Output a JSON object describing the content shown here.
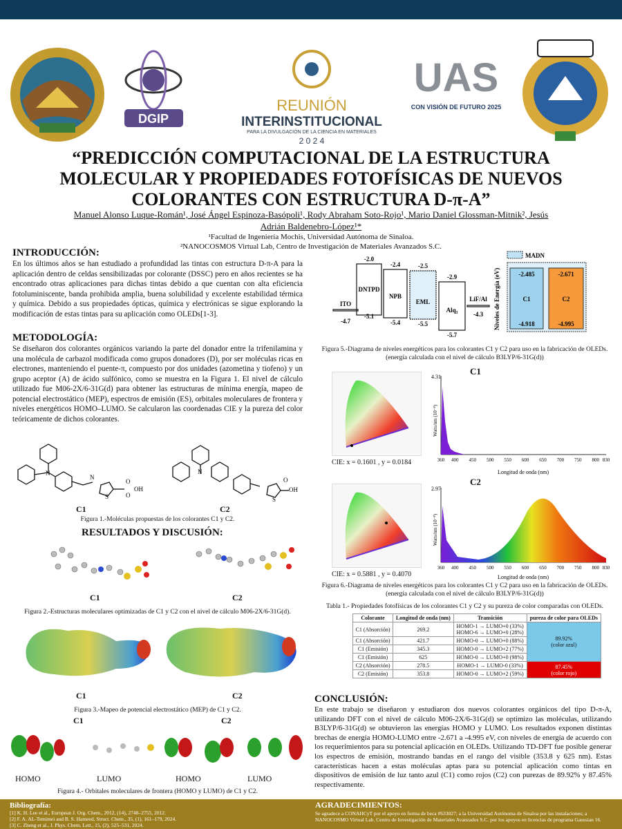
{
  "header": {
    "logos": [
      "uas-seal-logo",
      "dgip-logo",
      "reunion-logo",
      "uas-2025-logo",
      "facultad-mochis-logo"
    ],
    "logo_texts": {
      "dgip": "DGIP",
      "reunion_1": "REUNIÓN",
      "reunion_2": "INTERINSTITUCIONAL",
      "reunion_3": "PARA LA DIVULGACIÓN DE LA CIENCIA EN MATERIALES",
      "reunion_4": "2 0 2 4",
      "uas": "UAS",
      "uas_sub": "CON VISIÓN DE FUTURO 2025"
    }
  },
  "title": {
    "line1": "“PREDICCIÓN COMPUTACIONAL DE LA ESTRUCTURA",
    "line2": "MOLECULAR Y PROPIEDADES FOTOFÍSICAS DE NUEVOS",
    "line3": "COLORANTES CON ESTRUCTURA D-π-A”"
  },
  "authors": {
    "line1": "Manuel Alonso Luque-Román¹, José Ángel Espinoza-Basópoli¹, Rody Abraham Soto-Rojo¹, Mario Daniel Glossman-Mitnik², Jesús",
    "line2": "Adrián Baldenebro-López¹*",
    "affil1": "¹Facultad de Ingeniería Mochis, Universidad Autónoma de Sinaloa.",
    "affil2": "²NANOCOSMOS Virtual Lab, Centro de Investigación de Materiales Avanzados S.C."
  },
  "intro": {
    "title": "INTRODUCCIÓN:",
    "text": "En los últimos años se han estudiado a profundidad las tintas con estructura D-π-A para la aplicación dentro de celdas sensibilizadas por colorante (DSSC) pero en años recientes se ha encontrado otras aplicaciones para dichas tintas debido a que cuentan con alta eficiencia fotoluminiscente, banda prohibida amplia, buena solubilidad y excelente estabilidad térmica y química. Debido a sus propiedades ópticas, química y electrónicas se sigue explorando la modificación de estas tintas para su aplicación como OLEDs[1-3]."
  },
  "metodologia": {
    "title": "METODOLOGÍA:",
    "text": "Se diseñaron dos colorantes orgánicos variando la parte del donador entre la trifenilamina y una molécula de carbazol modificada como grupos donadores (D), por ser moléculas ricas en electrones, manteniendo el puente-π, compuesto por dos unidades (azometina y tiofeno) y un grupo aceptor (A) de ácido sulfónico, como se muestra en la Figura 1. El nivel de cálculo utilizado fue M06-2X/6-31G(d) para obtener las estructuras de mínima energía, mapeo de potencial electrostático (MEP), espectros de emisión (ES), orbitales moleculares de frontera y niveles energéticos HOMO–LUMO. Se calcularon las coordenadas CIE y la pureza del color teóricamente de dichos colorantes."
  },
  "fig1": {
    "label_c1": "C1",
    "label_c2": "C2",
    "so3h": "SO₃H",
    "o": "O",
    "s": "S",
    "oh": "OH",
    "n": "N",
    "caption": "Figura 1.-Moléculas propuestas de los colorantes C1 y C2."
  },
  "resultados": {
    "title": "RESULTADOS Y DISCUSIÓN:"
  },
  "fig2": {
    "label_c1": "C1",
    "label_c2": "C2",
    "caption": "Figura 2.-Estructuras moleculares optimizadas de C1 y C2 con el nivel de cálculo M06-2X/6-31G(d)."
  },
  "fig3": {
    "label_c1": "C1",
    "label_c2": "C2",
    "caption": "Figura 3.-Mapeo de potencial electrostático (MEP) de C1 y C2."
  },
  "fig4": {
    "label_c1": "C1",
    "label_c2": "C2",
    "homo1": "HOMO",
    "lumo1": "LUMO",
    "homo2": "HOMO",
    "lumo2": "LUMO",
    "caption": "Figura 4.- Orbitales moleculares de frontera (HOMO y LUMO) de C1 y C2."
  },
  "fig5": {
    "layers": [
      {
        "name": "ITO",
        "top": "",
        "bottom": "-4.7"
      },
      {
        "name": "DNTPD",
        "top": "-2.0",
        "bottom": "-5.1"
      },
      {
        "name": "NPB",
        "top": "-2.4",
        "bottom": "-5.4"
      },
      {
        "name": "EML",
        "top": "-2.5",
        "bottom": "-5.5"
      },
      {
        "name": "Alq₃",
        "top": "-2.9",
        "bottom": "-5.7"
      },
      {
        "name": "LiF/Al",
        "top": "",
        "bottom": "-4.3"
      }
    ],
    "legend": "MADN",
    "ylabel": "Niveles de Energía (eV)",
    "c1": {
      "name": "C1",
      "lumo": "-2.485",
      "homo": "-4.918"
    },
    "c2": {
      "name": "C2",
      "lumo": "-2.671",
      "homo": "-4.995"
    },
    "caption1": "Figura 5.-Diagrama de niveles energéticos para los colorantes C1 y C2 para uso en la fabricación de OLEDs.",
    "caption2": "(energía calculada con el nivel de cálculo B3LYP/6-31G(d))"
  },
  "fig6": {
    "c1": {
      "title": "C1",
      "cie": "CIE: x = 0.1601 , y = 0.0184",
      "ymax": "4.31",
      "ylabel": "Watts/nm (10⁻⁸)",
      "xlabel": "Longitud de onda (nm)",
      "ticks": [
        "360",
        "400",
        "450",
        "500",
        "550",
        "600",
        "650",
        "700",
        "750",
        "800",
        "830"
      ]
    },
    "c2": {
      "title": "C2",
      "cie": "CIE: x = 0.5881 , y = 0.4070",
      "ymax": "2.97",
      "ylabel": "Watts/nm (10⁻⁸)",
      "xlabel": "Longitud de onda (nm)",
      "ticks": [
        "360",
        "400",
        "450",
        "500",
        "550",
        "600",
        "650",
        "700",
        "750",
        "800",
        "830"
      ]
    },
    "caption1": "Figura 6.-Diagrama de niveles energéticos para los colorantes C1 y C2 para uso en la fabricación de OLEDs.",
    "caption2": "(energía calculada con el nivel de cálculo B3LYP/6-31G(d))"
  },
  "tabla": {
    "caption": "Tabla 1.- Propiedades fotofísicas de los colorantes C1 y C2 y su pureza de color comparadas con OLEDs.",
    "headers": [
      "Colorante",
      "Longitud de onda (nm)",
      "Transición",
      "pureza de color para OLEDs"
    ],
    "rows": [
      {
        "col": "C1 (Absorción)",
        "wl": "269.2",
        "tr": "HOMO-1 → LUMO+0 (33%)",
        "tr2": "HOMO-6 → LUMO+0 (28%)"
      },
      {
        "col": "C1 (Absorción)",
        "wl": "421.7",
        "tr": "HOMO-0 → LUMO+0 (88%)",
        "tr2": ""
      },
      {
        "col": "C1 (Emisión)",
        "wl": "345.3",
        "tr": "HOMO-0 → LUMO+2 (77%)",
        "tr2": ""
      },
      {
        "col": "C1 (Emisión)",
        "wl": "625",
        "tr": "HOMO-0 → LUMO+0 (98%)",
        "tr2": ""
      },
      {
        "col": "C2 (Absorción)",
        "wl": "278.5",
        "tr": "HOMO-1 → LUMO-0 (33%)",
        "tr2": ""
      },
      {
        "col": "C2 (Emisión)",
        "wl": "353.8",
        "tr": "HOMO-0 → LUMO+2 (59%)",
        "tr2": ""
      }
    ],
    "purity_blue": "89.92%",
    "purity_blue_sub": "(color azul)",
    "purity_red": "87.45%",
    "purity_red_sub": "(color rojo)"
  },
  "conclusion": {
    "title": "CONCLUSIÓN:",
    "text": "En este trabajo se diseñaron y estudiaron dos nuevos colorantes orgánicos del tipo D-π-A, utilizando DFT con el nivel de cálculo M06-2X/6-31G(d) se optimizo las moléculas, utilizando B3LYP/6-31G(d) se obtuvieron las energías HOMO y LUMO. Los resultados exponen distintas brechas de energía HOMO-LUMO entre -2.671 a -4.995 eV, con niveles de energía de acuerdo con los requerimientos para su potencial aplicación en OLEDs. Utilizando TD-DFT fue posible generar los espectros de emisión, mostrando bandas en el rango del visible (353.8 y 625 nm). Estas características hacen a estas moléculas aptas para su potencial aplicación como tintas en dispositivos de emisión de luz tanto azul (C1) como rojos (C2) con purezas de 89.92% y 87.45% respectivamente."
  },
  "footer": {
    "biblio_title": "Bibliografía:",
    "refs": [
      "[1] K. H. Lee et al., European J. Org. Chem., 2012, (14), 2748–2755, 2012.",
      "[2] F. A. AL-Temimei and B. S. Hameed, Struct. Chem., 35, (1), 161–179, 2024.",
      "[3] C. Zheng et al., J. Phys. Chem. Lett., 15, (2), 525–531, 2024."
    ],
    "agradecimientos_title": "AGRADECIMIENTOS:",
    "agradecimientos_text": "Se agradece a CONAHCyT por el apoyo en forma de beca #633027; a la Universidad Autónoma de Sinaloa por las instalaciones; a NANOCOSMO Virtual Lab. Centro de Investigación de Materiales Avanzados S.C. por los apoyos en licencias de programa Gaussian 16."
  }
}
